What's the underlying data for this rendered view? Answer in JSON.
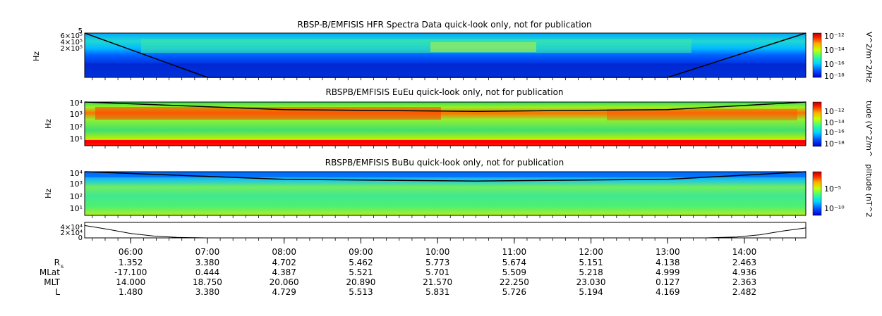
{
  "chart_data": [
    {
      "type": "heatmap",
      "title": "RBSP-B/EMFISIS  HFR Spectra Data quick-look only, not for publication",
      "ylabel": "Hz",
      "ytick_labels": [
        "6×10⁵",
        "4×10⁵",
        "2×10⁵",
        "5"
      ],
      "colorbar_label": "V^2/m^2/Hz",
      "colorbar_ticks": [
        "10⁻¹²",
        "10⁻¹⁴",
        "10⁻¹⁶",
        "10⁻¹⁸"
      ],
      "cutoff_line": [
        [
          5.4,
          1.0
        ],
        [
          7.0,
          0.0
        ],
        [
          13.0,
          0.0
        ],
        [
          14.8,
          1.0
        ]
      ]
    },
    {
      "type": "heatmap",
      "title": "RBSPB/EMFISIS  EuEu quick-look only, not for publication",
      "ylabel": "Hz",
      "ytick_labels": [
        "10⁴",
        "10³",
        "10²",
        "10¹"
      ],
      "colorbar_label": "tude (V^2/m^",
      "colorbar_ticks": [
        "10⁻¹²",
        "10⁻¹⁴",
        "10⁻¹⁶",
        "10⁻¹⁸"
      ],
      "cutoff_line": [
        [
          5.4,
          4.3
        ],
        [
          8.0,
          3.6
        ],
        [
          10.5,
          3.45
        ],
        [
          13.0,
          3.6
        ],
        [
          14.8,
          4.3
        ]
      ]
    },
    {
      "type": "heatmap",
      "title": "RBSPB/EMFISIS  BuBu quick-look only, not for publication",
      "ylabel": "Hz",
      "ytick_labels": [
        "10⁴",
        "10³",
        "10²",
        "10¹"
      ],
      "colorbar_label": "plitude (nT^2",
      "colorbar_ticks": [
        "10⁻⁵",
        "10⁻¹⁰"
      ],
      "cutoff_line": [
        [
          5.4,
          4.3
        ],
        [
          8.0,
          3.6
        ],
        [
          10.5,
          3.45
        ],
        [
          13.0,
          3.6
        ],
        [
          14.8,
          4.3
        ]
      ]
    },
    {
      "type": "line",
      "ytick_labels": [
        "4×10⁴",
        "2×10⁴",
        "0"
      ],
      "ylim": [
        0,
        50000
      ],
      "x": [
        5.4,
        5.7,
        6.0,
        6.3,
        6.6,
        7.0,
        13.5,
        13.9,
        14.2,
        14.5,
        14.8
      ],
      "y": [
        40000,
        28000,
        14000,
        6000,
        1500,
        0,
        0,
        3000,
        10000,
        22000,
        32000
      ]
    }
  ],
  "time_axis": {
    "xlim": [
      5.4,
      14.8
    ],
    "ticks": [
      "06:00",
      "07:00",
      "08:00",
      "09:00",
      "10:00",
      "11:00",
      "12:00",
      "13:00",
      "14:00"
    ]
  },
  "ephemeris": {
    "rows": [
      {
        "label": "R",
        "sub": "s",
        "values": [
          "1.352",
          "3.380",
          "4.702",
          "5.462",
          "5.773",
          "5.674",
          "5.151",
          "4.138",
          "2.463"
        ]
      },
      {
        "label": "MLat",
        "values": [
          "-17.100",
          "0.444",
          "4.387",
          "5.521",
          "5.701",
          "5.509",
          "5.218",
          "4.999",
          "4.936"
        ]
      },
      {
        "label": "MLT",
        "values": [
          "14.000",
          "18.750",
          "20.060",
          "20.890",
          "21.570",
          "22.250",
          "23.030",
          "0.127",
          "2.363"
        ]
      },
      {
        "label": "L",
        "values": [
          "1.480",
          "3.380",
          "4.729",
          "5.513",
          "5.831",
          "5.726",
          "5.194",
          "4.169",
          "2.482"
        ]
      }
    ]
  },
  "colors": {
    "jet": [
      "#00007f",
      "#0000ff",
      "#007fff",
      "#00ffff",
      "#7fff7f",
      "#ffff00",
      "#ff7f00",
      "#ff0000",
      "#7f0000"
    ]
  }
}
